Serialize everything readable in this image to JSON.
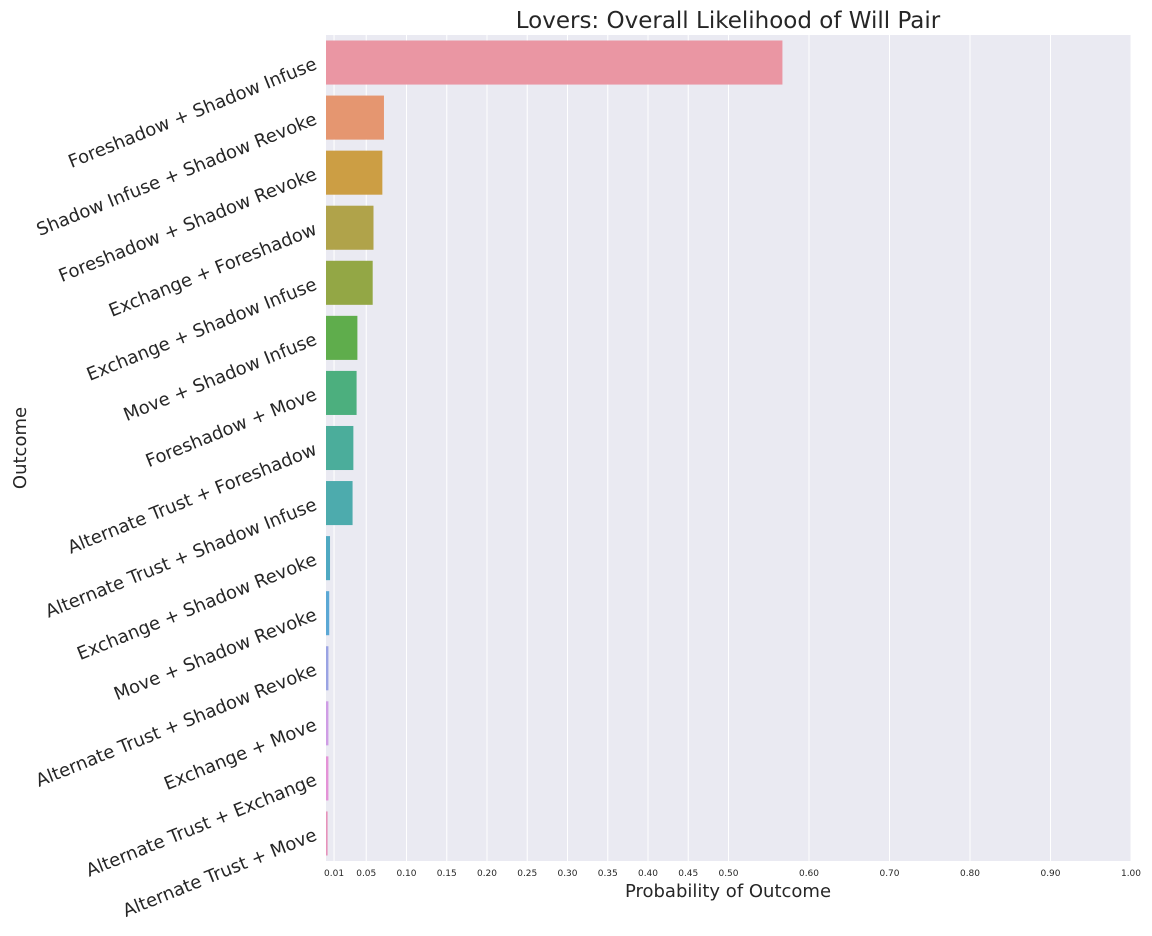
{
  "chart_data": {
    "type": "bar",
    "orientation": "horizontal",
    "title": "Lovers: Overall Likelihood of Will Pair",
    "xlabel": "Probability of Outcome",
    "ylabel": "Outcome",
    "xlim": [
      0,
      1.0
    ],
    "xticks": [
      0.01,
      0.05,
      0.1,
      0.15,
      0.2,
      0.25,
      0.3,
      0.35,
      0.4,
      0.45,
      0.5,
      0.6,
      0.7,
      0.8,
      0.9,
      1.0
    ],
    "xtick_labels": [
      "0.01",
      "0.05",
      "0.10",
      "0.15",
      "0.20",
      "0.25",
      "0.30",
      "0.35",
      "0.40",
      "0.45",
      "0.50",
      "0.60",
      "0.70",
      "0.80",
      "0.90",
      "1.00"
    ],
    "grid": true,
    "categories": [
      "Foreshadow + Shadow Infuse",
      "Shadow Infuse + Shadow Revoke",
      "Foreshadow + Shadow Revoke",
      "Exchange + Foreshadow",
      "Exchange + Shadow Infuse",
      "Move + Shadow Infuse",
      "Foreshadow + Move",
      "Alternate Trust + Foreshadow",
      "Alternate Trust + Shadow Infuse",
      "Exchange + Shadow Revoke",
      "Move + Shadow Revoke",
      "Alternate Trust + Shadow Revoke",
      "Exchange + Move",
      "Alternate Trust + Exchange",
      "Alternate Trust + Move"
    ],
    "values": [
      0.567,
      0.072,
      0.07,
      0.059,
      0.058,
      0.039,
      0.038,
      0.034,
      0.033,
      0.005,
      0.004,
      0.003,
      0.003,
      0.003,
      0.002
    ],
    "colors": [
      "#ea96a3",
      "#e59670",
      "#cc9e44",
      "#b0a34a",
      "#93a745",
      "#5fad4c",
      "#4caf7e",
      "#4bad9b",
      "#4dabad",
      "#4fa9c2",
      "#5ba8d5",
      "#9aa3e3",
      "#cf9de5",
      "#e493d7",
      "#e693bb"
    ]
  }
}
